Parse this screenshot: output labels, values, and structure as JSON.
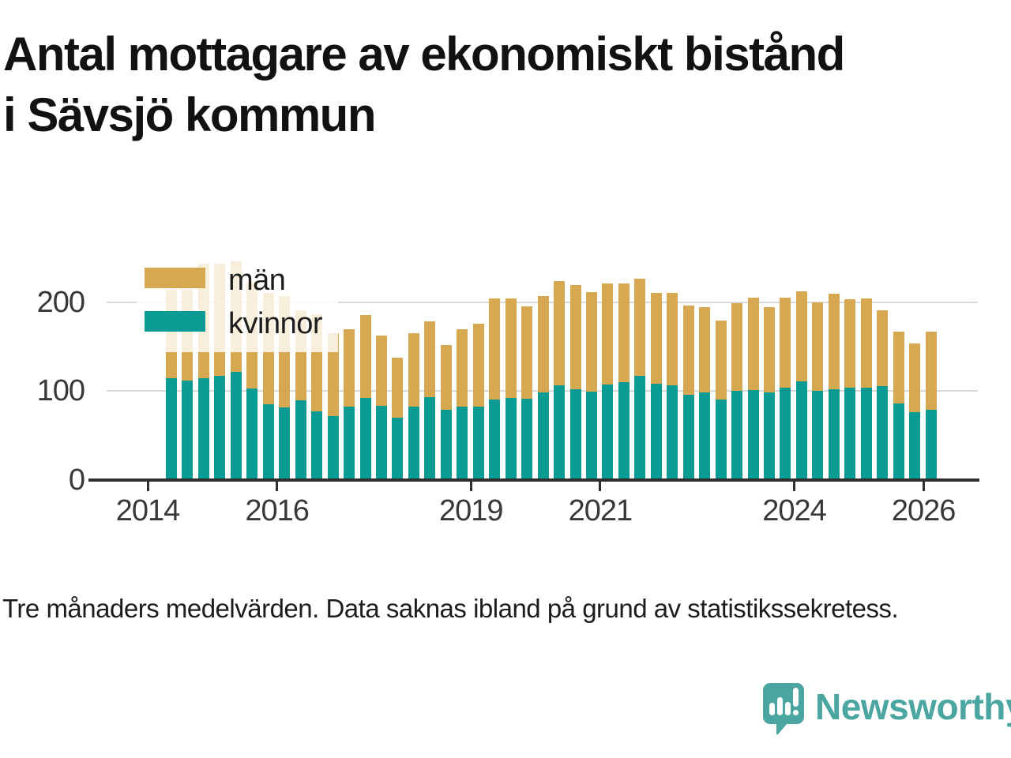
{
  "title": {
    "line1": "Antal mottagare av ekonomiskt bistånd",
    "line2": "i Sävsjö kommun"
  },
  "footnote": "Tre månaders medelvärden. Data saknas ibland på grund av statistikssekretess.",
  "branding": {
    "name": "Newsworthy",
    "color": "#4ba5a1"
  },
  "legend": {
    "items": [
      "män",
      "kvinnor"
    ]
  },
  "chart_data": {
    "type": "bar",
    "stacked": true,
    "title": "Antal mottagare av ekonomiskt bistånd i Sävsjö kommun",
    "x": [
      "2014 Q2",
      "2014 Q3",
      "2014 Q4",
      "2015 Q1",
      "2015 Q2",
      "2015 Q3",
      "2015 Q4",
      "2016 Q1",
      "2016 Q2",
      "2016 Q3",
      "2016 Q4",
      "2017 Q1",
      "2017 Q2",
      "2017 Q3",
      "2017 Q4",
      "2018 Q1",
      "2018 Q2",
      "2018 Q3",
      "2018 Q4",
      "2019 Q1",
      "2019 Q2",
      "2019 Q3",
      "2019 Q4",
      "2020 Q1",
      "2020 Q2",
      "2020 Q3",
      "2020 Q4",
      "2021 Q1",
      "2021 Q2",
      "2021 Q3",
      "2021 Q4",
      "2022 Q1",
      "2022 Q2",
      "2022 Q3",
      "2022 Q4",
      "2023 Q1",
      "2023 Q2",
      "2023 Q3",
      "2023 Q4",
      "2024 Q1",
      "2024 Q2",
      "2024 Q3",
      "2024 Q4",
      "2025 Q1",
      "2025 Q2",
      "2025 Q3",
      "2025 Q4",
      "2026 Q1"
    ],
    "series": [
      {
        "name": "kvinnor",
        "color": "#0a9b94",
        "values": [
          114,
          112,
          114,
          117,
          121,
          103,
          85,
          81,
          89,
          77,
          72,
          82,
          92,
          83,
          70,
          82,
          93,
          79,
          82,
          82,
          90,
          92,
          91,
          98,
          106,
          102,
          99,
          107,
          110,
          117,
          108,
          106,
          96,
          98,
          90,
          100,
          101,
          98,
          104,
          111,
          100,
          102,
          104,
          104,
          105,
          86,
          76,
          79
        ]
      },
      {
        "name": "män",
        "color": "#d6a850",
        "values": [
          100,
          102,
          129,
          126,
          125,
          120,
          125,
          126,
          102,
          109,
          93,
          87,
          93,
          79,
          67,
          83,
          85,
          73,
          87,
          94,
          114,
          112,
          104,
          109,
          118,
          117,
          112,
          114,
          111,
          109,
          102,
          104,
          100,
          96,
          89,
          99,
          104,
          96,
          101,
          101,
          100,
          107,
          99,
          100,
          86,
          81,
          77,
          88
        ]
      }
    ],
    "legend_order": [
      "män",
      "kvinnor"
    ],
    "legend_position": "top-left-inside",
    "grid": "horizontal",
    "y_ticks": [
      0,
      100,
      200
    ],
    "x_ticks": [
      2014,
      2016,
      2019,
      2021,
      2024,
      2026
    ],
    "ylim": [
      0,
      250
    ],
    "xlabel": "",
    "ylabel": ""
  }
}
